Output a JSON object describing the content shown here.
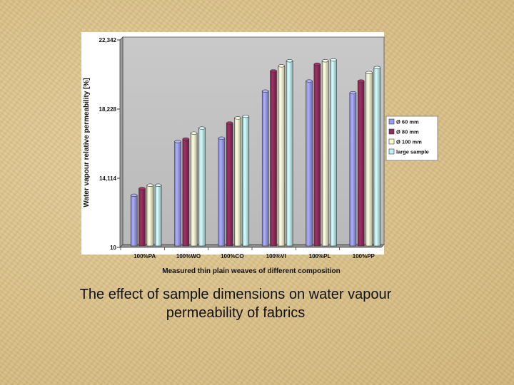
{
  "caption": "The effect of sample dimensions on water vapour permeability of fabrics",
  "chart_data": {
    "type": "bar",
    "title": "",
    "xlabel": "Measured thin plain weaves of different composition",
    "ylabel": "Water vapour relative permeability [%]",
    "ylim": [
      10,
      22.342
    ],
    "yticks": [
      "10",
      "14,114",
      "18,228",
      "22,342"
    ],
    "ytick_values": [
      10,
      14.114,
      18.228,
      22.342
    ],
    "categories": [
      "100%PA",
      "100%WO",
      "100%CO",
      "100%VI",
      "100%PL",
      "100%PP"
    ],
    "legend_position": "right",
    "grid": false,
    "series": [
      {
        "name": "Ø 60 mm",
        "color": "#9a9cf2",
        "values": [
          13.1,
          16.3,
          16.5,
          19.3,
          19.9,
          19.2
        ]
      },
      {
        "name": "Ø 80 mm",
        "color": "#8e2c5a",
        "values": [
          13.5,
          16.45,
          17.4,
          20.5,
          20.9,
          19.9
        ]
      },
      {
        "name": "Ø 100 mm",
        "color": "#fbfacd",
        "values": [
          13.7,
          16.8,
          17.7,
          20.8,
          21.1,
          20.4
        ]
      },
      {
        "name": "large sample",
        "color": "#bff1f5",
        "values": [
          13.7,
          17.1,
          17.8,
          21.1,
          21.15,
          20.7
        ]
      }
    ]
  }
}
